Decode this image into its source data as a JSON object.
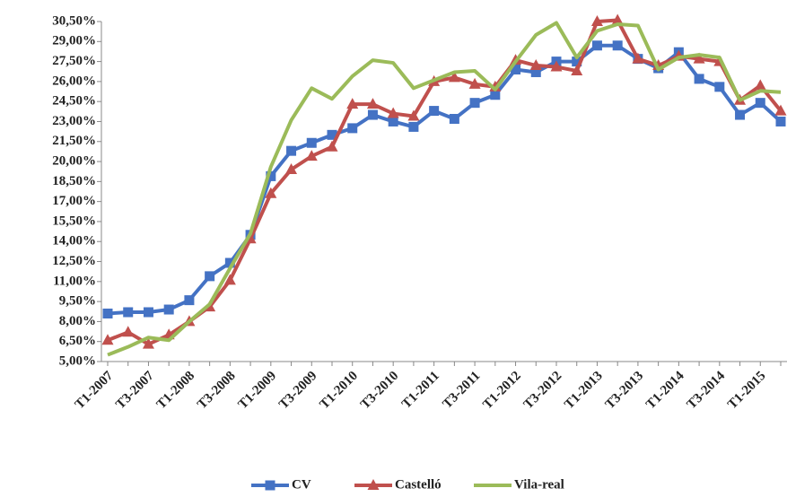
{
  "chart_data": {
    "type": "line",
    "categories": [
      "T1-2007",
      null,
      "T3-2007",
      null,
      "T1-2008",
      null,
      "T3-2008",
      null,
      "T1-2009",
      null,
      "T3-2009",
      null,
      "T1-2010",
      null,
      "T3-2010",
      null,
      "T1-2011",
      null,
      "T3-2011",
      null,
      "T1-2012",
      null,
      "T3-2012",
      null,
      "T1-2013",
      null,
      "T3-2013",
      null,
      "T1-2014",
      null,
      "T3-2014",
      null,
      "T1-2015",
      null
    ],
    "series": [
      {
        "name": "CV",
        "color": "#4472c4",
        "marker": "square",
        "values": [
          8.6,
          8.7,
          8.7,
          8.9,
          9.6,
          11.4,
          12.4,
          14.5,
          18.9,
          20.8,
          21.4,
          22.0,
          22.5,
          23.5,
          23.0,
          22.6,
          23.8,
          23.2,
          24.4,
          25.0,
          26.9,
          26.7,
          27.5,
          27.5,
          28.7,
          28.7,
          27.7,
          27.0,
          28.2,
          26.2,
          25.6,
          23.5,
          24.4,
          23.0
        ]
      },
      {
        "name": "Castelló",
        "color": "#c0504d",
        "marker": "triangle",
        "values": [
          6.6,
          7.2,
          6.3,
          7.0,
          8.0,
          9.1,
          11.1,
          14.2,
          17.6,
          19.4,
          20.4,
          21.1,
          24.3,
          24.3,
          23.6,
          23.4,
          26.0,
          26.3,
          25.8,
          25.6,
          27.6,
          27.2,
          27.1,
          26.8,
          30.5,
          30.6,
          27.7,
          27.2,
          27.9,
          27.7,
          27.5,
          24.6,
          25.7,
          23.8
        ]
      },
      {
        "name": "Vila-real",
        "color": "#9bbb59",
        "marker": "none",
        "values": [
          5.5,
          6.1,
          6.8,
          6.6,
          8.0,
          9.3,
          12.0,
          14.6,
          19.6,
          23.1,
          25.5,
          24.7,
          26.4,
          27.6,
          27.4,
          25.5,
          26.1,
          26.7,
          26.8,
          25.4,
          27.5,
          29.5,
          30.4,
          27.8,
          29.8,
          30.3,
          30.2,
          26.9,
          27.8,
          28.0,
          27.8,
          24.6,
          25.3,
          25.2
        ]
      }
    ],
    "ylim": [
      5,
      30.5
    ],
    "yticks": [
      {
        "value": 5,
        "label": "5,00%"
      },
      {
        "value": 6.5,
        "label": "6,50%"
      },
      {
        "value": 8,
        "label": "8,00%"
      },
      {
        "value": 9.5,
        "label": "9,50%"
      },
      {
        "value": 11,
        "label": "11,00%"
      },
      {
        "value": 12.5,
        "label": "12,50%"
      },
      {
        "value": 14,
        "label": "14,00%"
      },
      {
        "value": 15.5,
        "label": "15,50%"
      },
      {
        "value": 17,
        "label": "17,00%"
      },
      {
        "value": 18.5,
        "label": "18,50%"
      },
      {
        "value": 20,
        "label": "20,00%"
      },
      {
        "value": 21.5,
        "label": "21,50%"
      },
      {
        "value": 23,
        "label": "23,00%"
      },
      {
        "value": 24.5,
        "label": "24,50%"
      },
      {
        "value": 26,
        "label": "26,00%"
      },
      {
        "value": 27.5,
        "label": "27,50%"
      },
      {
        "value": 29,
        "label": "29,00%"
      },
      {
        "value": 30.5,
        "label": "30,50%"
      }
    ],
    "grid": false,
    "legend": "bottom"
  }
}
